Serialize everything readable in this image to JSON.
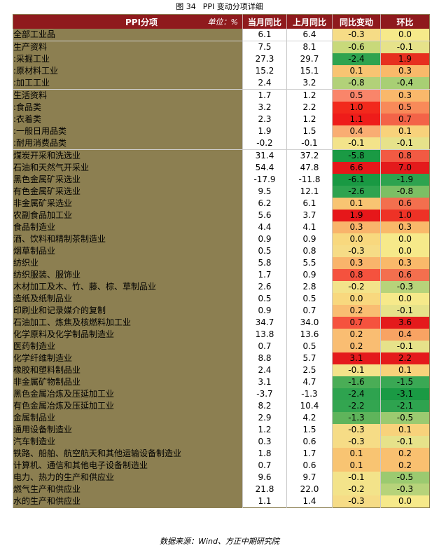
{
  "caption": {
    "number": "图 34",
    "title": "PPI 变动分项详细"
  },
  "table": {
    "headers": {
      "item": "PPI分项",
      "unit": "单位：%",
      "current": "当月同比",
      "previous": "上月同比",
      "yoy_change": "同比变动",
      "mom": "环比"
    },
    "rows": [
      {
        "name": "全部工业品",
        "cur": "6.1",
        "prev": "6.4",
        "chg": "-0.3",
        "mom": "0.0",
        "chg_color": "#f6dc86",
        "mom_color": "#f6e98a"
      },
      {
        "name": "生产资料",
        "cur": "7.5",
        "prev": "8.1",
        "chg": "-0.6",
        "mom": "-0.1",
        "chg_color": "#c8d97a",
        "mom_color": "#e6e28a"
      },
      {
        "name": ":采掘工业",
        "cur": "27.3",
        "prev": "29.7",
        "chg": "-2.4",
        "mom": "1.9",
        "chg_color": "#2ea34f",
        "mom_color": "#e62f1f"
      },
      {
        "name": ":原材料工业",
        "cur": "15.2",
        "prev": "15.1",
        "chg": "0.1",
        "mom": "0.3",
        "chg_color": "#f8c472",
        "mom_color": "#f9b96a"
      },
      {
        "name": ":加工工业",
        "cur": "2.4",
        "prev": "3.2",
        "chg": "-0.8",
        "mom": "-0.4",
        "chg_color": "#b2d179",
        "mom_color": "#a8cf74"
      },
      {
        "name": "生活资料",
        "cur": "1.7",
        "prev": "1.2",
        "chg": "0.5",
        "mom": "0.3",
        "chg_color": "#f9856a",
        "mom_color": "#f9b86b"
      },
      {
        "name": ":食品类",
        "cur": "3.2",
        "prev": "2.2",
        "chg": "1.0",
        "mom": "0.5",
        "chg_color": "#f2291c",
        "mom_color": "#f88a59"
      },
      {
        "name": ":衣着类",
        "cur": "2.3",
        "prev": "1.2",
        "chg": "1.1",
        "mom": "0.7",
        "chg_color": "#ee1c1a",
        "mom_color": "#f36348"
      },
      {
        "name": ":一般日用品类",
        "cur": "1.9",
        "prev": "1.5",
        "chg": "0.4",
        "mom": "0.1",
        "chg_color": "#f9ad73",
        "mom_color": "#f8d27b"
      },
      {
        "name": ":耐用消费品类",
        "cur": "-0.2",
        "prev": "-0.1",
        "chg": "-0.1",
        "mom": "-0.1",
        "chg_color": "#f3e38a",
        "mom_color": "#e6e28a"
      },
      {
        "name": "煤炭开采和洗选业",
        "cur": "31.4",
        "prev": "37.2",
        "chg": "-5.8",
        "mom": "0.8",
        "chg_color": "#1a9a44",
        "mom_color": "#f25a43"
      },
      {
        "name": "石油和天然气开采业",
        "cur": "54.4",
        "prev": "47.8",
        "chg": "6.6",
        "mom": "7.0",
        "chg_color": "#e6171a",
        "mom_color": "#e41a1c"
      },
      {
        "name": "黑色金属矿采选业",
        "cur": "-17.9",
        "prev": "-11.8",
        "chg": "-6.1",
        "mom": "-1.9",
        "chg_color": "#199943",
        "mom_color": "#2ea34f"
      },
      {
        "name": "有色金属矿采选业",
        "cur": "9.5",
        "prev": "12.1",
        "chg": "-2.6",
        "mom": "-0.8",
        "chg_color": "#2ea34f",
        "mom_color": "#7cbf64"
      },
      {
        "name": "非金属矿采选业",
        "cur": "6.2",
        "prev": "6.1",
        "chg": "0.1",
        "mom": "0.6",
        "chg_color": "#f8c472",
        "mom_color": "#f36f4e"
      },
      {
        "name": "农副食品加工业",
        "cur": "5.6",
        "prev": "3.7",
        "chg": "1.9",
        "mom": "1.0",
        "chg_color": "#e6171a",
        "mom_color": "#ee3226"
      },
      {
        "name": "食品制造业",
        "cur": "4.4",
        "prev": "4.1",
        "chg": "0.3",
        "mom": "0.3",
        "chg_color": "#f9b46b",
        "mom_color": "#f9b96a"
      },
      {
        "name": "酒、饮料和精制茶制造业",
        "cur": "0.9",
        "prev": "0.9",
        "chg": "0.0",
        "mom": "0.0",
        "chg_color": "#f8d87e",
        "mom_color": "#f6e98a"
      },
      {
        "name": "烟草制品业",
        "cur": "0.5",
        "prev": "0.8",
        "chg": "-0.3",
        "mom": "0.0",
        "chg_color": "#f6dc86",
        "mom_color": "#f6e98a"
      },
      {
        "name": "纺织业",
        "cur": "5.8",
        "prev": "5.5",
        "chg": "0.3",
        "mom": "0.3",
        "chg_color": "#f9b46b",
        "mom_color": "#f9b96a"
      },
      {
        "name": "纺织服装、服饰业",
        "cur": "1.7",
        "prev": "0.9",
        "chg": "0.8",
        "mom": "0.6",
        "chg_color": "#f5523e",
        "mom_color": "#f36f4e"
      },
      {
        "name": "木材加工及木、竹、藤、棕、草制品业",
        "cur": "2.6",
        "prev": "2.8",
        "chg": "-0.2",
        "mom": "-0.3",
        "chg_color": "#f3e38a",
        "mom_color": "#b7d37a"
      },
      {
        "name": "造纸及纸制品业",
        "cur": "0.5",
        "prev": "0.5",
        "chg": "0.0",
        "mom": "0.0",
        "chg_color": "#f8d87e",
        "mom_color": "#f6e98a"
      },
      {
        "name": "印刷业和记录媒介的复制",
        "cur": "0.9",
        "prev": "0.7",
        "chg": "0.2",
        "mom": "-0.1",
        "chg_color": "#f9bd72",
        "mom_color": "#e6e28a"
      },
      {
        "name": "石油加工、炼焦及核燃料加工业",
        "cur": "34.7",
        "prev": "34.0",
        "chg": "0.7",
        "mom": "3.6",
        "chg_color": "#f5523e",
        "mom_color": "#e41a1c"
      },
      {
        "name": "化学原料及化学制品制造业",
        "cur": "13.8",
        "prev": "13.6",
        "chg": "0.2",
        "mom": "0.4",
        "chg_color": "#f9bd72",
        "mom_color": "#f8a363"
      },
      {
        "name": "医药制造业",
        "cur": "0.7",
        "prev": "0.5",
        "chg": "0.2",
        "mom": "-0.1",
        "chg_color": "#f9bd72",
        "mom_color": "#e6e28a"
      },
      {
        "name": "化学纤维制造业",
        "cur": "8.8",
        "prev": "5.7",
        "chg": "3.1",
        "mom": "2.2",
        "chg_color": "#e41a1c",
        "mom_color": "#e41a1c"
      },
      {
        "name": "橡胶和塑料制品业",
        "cur": "2.4",
        "prev": "2.5",
        "chg": "-0.1",
        "mom": "0.1",
        "chg_color": "#f3e38a",
        "mom_color": "#f8d27b"
      },
      {
        "name": "非金属矿物制品业",
        "cur": "3.1",
        "prev": "4.7",
        "chg": "-1.6",
        "mom": "-1.5",
        "chg_color": "#4aad56",
        "mom_color": "#3aa854"
      },
      {
        "name": "黑色金属冶炼及压延加工业",
        "cur": "-3.7",
        "prev": "-1.3",
        "chg": "-2.4",
        "mom": "-3.1",
        "chg_color": "#2ea34f",
        "mom_color": "#1a9a44"
      },
      {
        "name": "有色金属冶炼及压延加工业",
        "cur": "8.2",
        "prev": "10.4",
        "chg": "-2.2",
        "mom": "-2.1",
        "chg_color": "#33a550",
        "mom_color": "#2ea34f"
      },
      {
        "name": "金属制品业",
        "cur": "2.9",
        "prev": "4.2",
        "chg": "-1.3",
        "mom": "-0.5",
        "chg_color": "#5fb45b",
        "mom_color": "#9bca70"
      },
      {
        "name": "通用设备制造业",
        "cur": "1.2",
        "prev": "1.5",
        "chg": "-0.3",
        "mom": "0.1",
        "chg_color": "#f6dc86",
        "mom_color": "#f8d27b"
      },
      {
        "name": "汽车制造业",
        "cur": "0.3",
        "prev": "0.6",
        "chg": "-0.3",
        "mom": "-0.1",
        "chg_color": "#f6dc86",
        "mom_color": "#e6e28a"
      },
      {
        "name": "铁路、船舶、航空航天和其他运输设备制造业",
        "cur": "1.8",
        "prev": "1.7",
        "chg": "0.1",
        "mom": "0.2",
        "chg_color": "#f8c472",
        "mom_color": "#f9c070"
      },
      {
        "name": "计算机、通信和其他电子设备制造业",
        "cur": "0.7",
        "prev": "0.6",
        "chg": "0.1",
        "mom": "0.2",
        "chg_color": "#f8c472",
        "mom_color": "#f9c070"
      },
      {
        "name": "电力、热力的生产和供应业",
        "cur": "9.6",
        "prev": "9.7",
        "chg": "-0.1",
        "mom": "-0.5",
        "chg_color": "#f3e38a",
        "mom_color": "#9bca70"
      },
      {
        "name": "燃气生产和供应业",
        "cur": "21.8",
        "prev": "22.0",
        "chg": "-0.2",
        "mom": "-0.3",
        "chg_color": "#f3e38a",
        "mom_color": "#b7d37a"
      },
      {
        "name": "水的生产和供应业",
        "cur": "1.1",
        "prev": "1.4",
        "chg": "-0.3",
        "mom": "0.0",
        "chg_color": "#f6dc86",
        "mom_color": "#f6e98a"
      }
    ]
  },
  "footer": {
    "source": "数据来源：Wind、方正中期研究院"
  }
}
